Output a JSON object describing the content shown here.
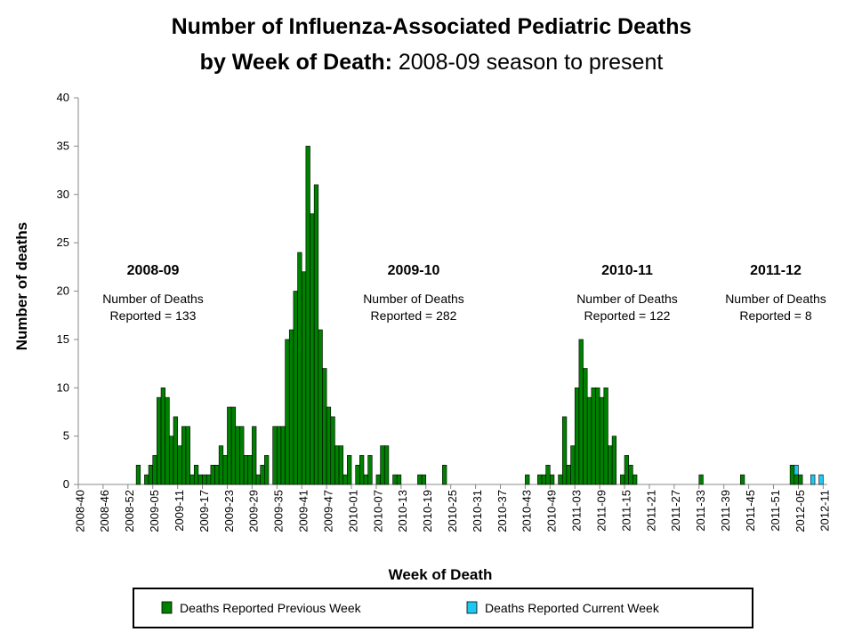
{
  "chart_data": {
    "type": "bar",
    "stacked": true,
    "title": {
      "line1": "Number of Influenza-Associated Pediatric Deaths",
      "line2_bold": "by Week of Death:",
      "line2": "2008-09 season to present"
    },
    "x_label": "Week of Death",
    "y_label": "Number of deaths",
    "ylim": [
      0,
      40
    ],
    "yticks": [
      0,
      5,
      10,
      15,
      20,
      25,
      30,
      35,
      40
    ],
    "grid": false,
    "categories": [
      "2008-40",
      null,
      null,
      null,
      null,
      null,
      "2008-46",
      null,
      null,
      null,
      null,
      null,
      "2008-52",
      null,
      null,
      null,
      null,
      null,
      "2009-05",
      null,
      null,
      null,
      null,
      null,
      "2009-11",
      null,
      null,
      null,
      null,
      null,
      "2009-17",
      null,
      null,
      null,
      null,
      null,
      "2009-23",
      null,
      null,
      null,
      null,
      null,
      "2009-29",
      null,
      null,
      null,
      null,
      null,
      "2009-35",
      null,
      null,
      null,
      null,
      null,
      "2009-41",
      null,
      null,
      null,
      null,
      null,
      "2009-47",
      null,
      null,
      null,
      null,
      null,
      "2010-01",
      null,
      null,
      null,
      null,
      null,
      "2010-07",
      null,
      null,
      null,
      null,
      null,
      "2010-13",
      null,
      null,
      null,
      null,
      null,
      "2010-19",
      null,
      null,
      null,
      null,
      null,
      "2010-25",
      null,
      null,
      null,
      null,
      null,
      "2010-31",
      null,
      null,
      null,
      null,
      null,
      "2010-37",
      null,
      null,
      null,
      null,
      null,
      "2010-43",
      null,
      null,
      null,
      null,
      null,
      "2010-49",
      null,
      null,
      null,
      null,
      null,
      "2011-03",
      null,
      null,
      null,
      null,
      null,
      "2011-09",
      null,
      null,
      null,
      null,
      null,
      "2011-15",
      null,
      null,
      null,
      null,
      null,
      "2011-21",
      null,
      null,
      null,
      null,
      null,
      "2011-27",
      null,
      null,
      null,
      null,
      null,
      "2011-33",
      null,
      null,
      null,
      null,
      null,
      "2011-39",
      null,
      null,
      null,
      null,
      null,
      "2011-45",
      null,
      null,
      null,
      null,
      null,
      "2011-51",
      null,
      null,
      null,
      null,
      null,
      "2012-05",
      null,
      null,
      null,
      null,
      null,
      "2012-11"
    ],
    "series": [
      {
        "name": "Deaths Reported Previous Week",
        "color": "#008000",
        "values": [
          0,
          0,
          0,
          0,
          0,
          0,
          0,
          0,
          0,
          0,
          0,
          0,
          0,
          0,
          2,
          0,
          1,
          2,
          3,
          9,
          10,
          9,
          5,
          7,
          4,
          6,
          6,
          1,
          2,
          1,
          1,
          1,
          2,
          2,
          4,
          3,
          8,
          8,
          6,
          6,
          3,
          3,
          6,
          1,
          2,
          3,
          0,
          6,
          6,
          6,
          15,
          16,
          20,
          24,
          22,
          35,
          28,
          31,
          16,
          12,
          8,
          7,
          4,
          4,
          1,
          3,
          0,
          2,
          3,
          1,
          3,
          0,
          1,
          4,
          4,
          0,
          1,
          1,
          0,
          0,
          0,
          0,
          1,
          1,
          0,
          0,
          0,
          0,
          2,
          0,
          0,
          0,
          0,
          0,
          0,
          0,
          0,
          0,
          0,
          0,
          0,
          0,
          0,
          0,
          0,
          0,
          0,
          0,
          1,
          0,
          0,
          1,
          1,
          2,
          1,
          0,
          1,
          7,
          2,
          4,
          10,
          15,
          12,
          9,
          10,
          10,
          9,
          10,
          4,
          5,
          0,
          1,
          3,
          2,
          1,
          0,
          0,
          0,
          0,
          0,
          0,
          0,
          0,
          0,
          0,
          0,
          0,
          0,
          0,
          0,
          1,
          0,
          0,
          0,
          0,
          0,
          0,
          0,
          0,
          0,
          1,
          0,
          0,
          0,
          0,
          0,
          0,
          0,
          0,
          0,
          0,
          0,
          2,
          1,
          1,
          0,
          0,
          0,
          0,
          0,
          0
        ]
      },
      {
        "name": "Deaths Reported Current Week",
        "color": "#1ec8f0",
        "values": [
          0,
          0,
          0,
          0,
          0,
          0,
          0,
          0,
          0,
          0,
          0,
          0,
          0,
          0,
          0,
          0,
          0,
          0,
          0,
          0,
          0,
          0,
          0,
          0,
          0,
          0,
          0,
          0,
          0,
          0,
          0,
          0,
          0,
          0,
          0,
          0,
          0,
          0,
          0,
          0,
          0,
          0,
          0,
          0,
          0,
          0,
          0,
          0,
          0,
          0,
          0,
          0,
          0,
          0,
          0,
          0,
          0,
          0,
          0,
          0,
          0,
          0,
          0,
          0,
          0,
          0,
          0,
          0,
          0,
          0,
          0,
          0,
          0,
          0,
          0,
          0,
          0,
          0,
          0,
          0,
          0,
          0,
          0,
          0,
          0,
          0,
          0,
          0,
          0,
          0,
          0,
          0,
          0,
          0,
          0,
          0,
          0,
          0,
          0,
          0,
          0,
          0,
          0,
          0,
          0,
          0,
          0,
          0,
          0,
          0,
          0,
          0,
          0,
          0,
          0,
          0,
          0,
          0,
          0,
          0,
          0,
          0,
          0,
          0,
          0,
          0,
          0,
          0,
          0,
          0,
          0,
          0,
          0,
          0,
          0,
          0,
          0,
          0,
          0,
          0,
          0,
          0,
          0,
          0,
          0,
          0,
          0,
          0,
          0,
          0,
          0,
          0,
          0,
          0,
          0,
          0,
          0,
          0,
          0,
          0,
          0,
          0,
          0,
          0,
          0,
          0,
          0,
          0,
          0,
          0,
          0,
          0,
          0,
          1,
          0,
          0,
          0,
          1,
          0,
          1,
          0
        ]
      }
    ],
    "annotations": [
      {
        "title": "2008-09",
        "text": [
          "Number of Deaths",
          "Reported = 133"
        ]
      },
      {
        "title": "2009-10",
        "text": [
          "Number of Deaths",
          "Reported = 282"
        ]
      },
      {
        "title": "2010-11",
        "text": [
          "Number of Deaths",
          "Reported = 122"
        ]
      },
      {
        "title": "2011-12",
        "text": [
          "Number of Deaths",
          "Reported = 8"
        ]
      }
    ]
  }
}
